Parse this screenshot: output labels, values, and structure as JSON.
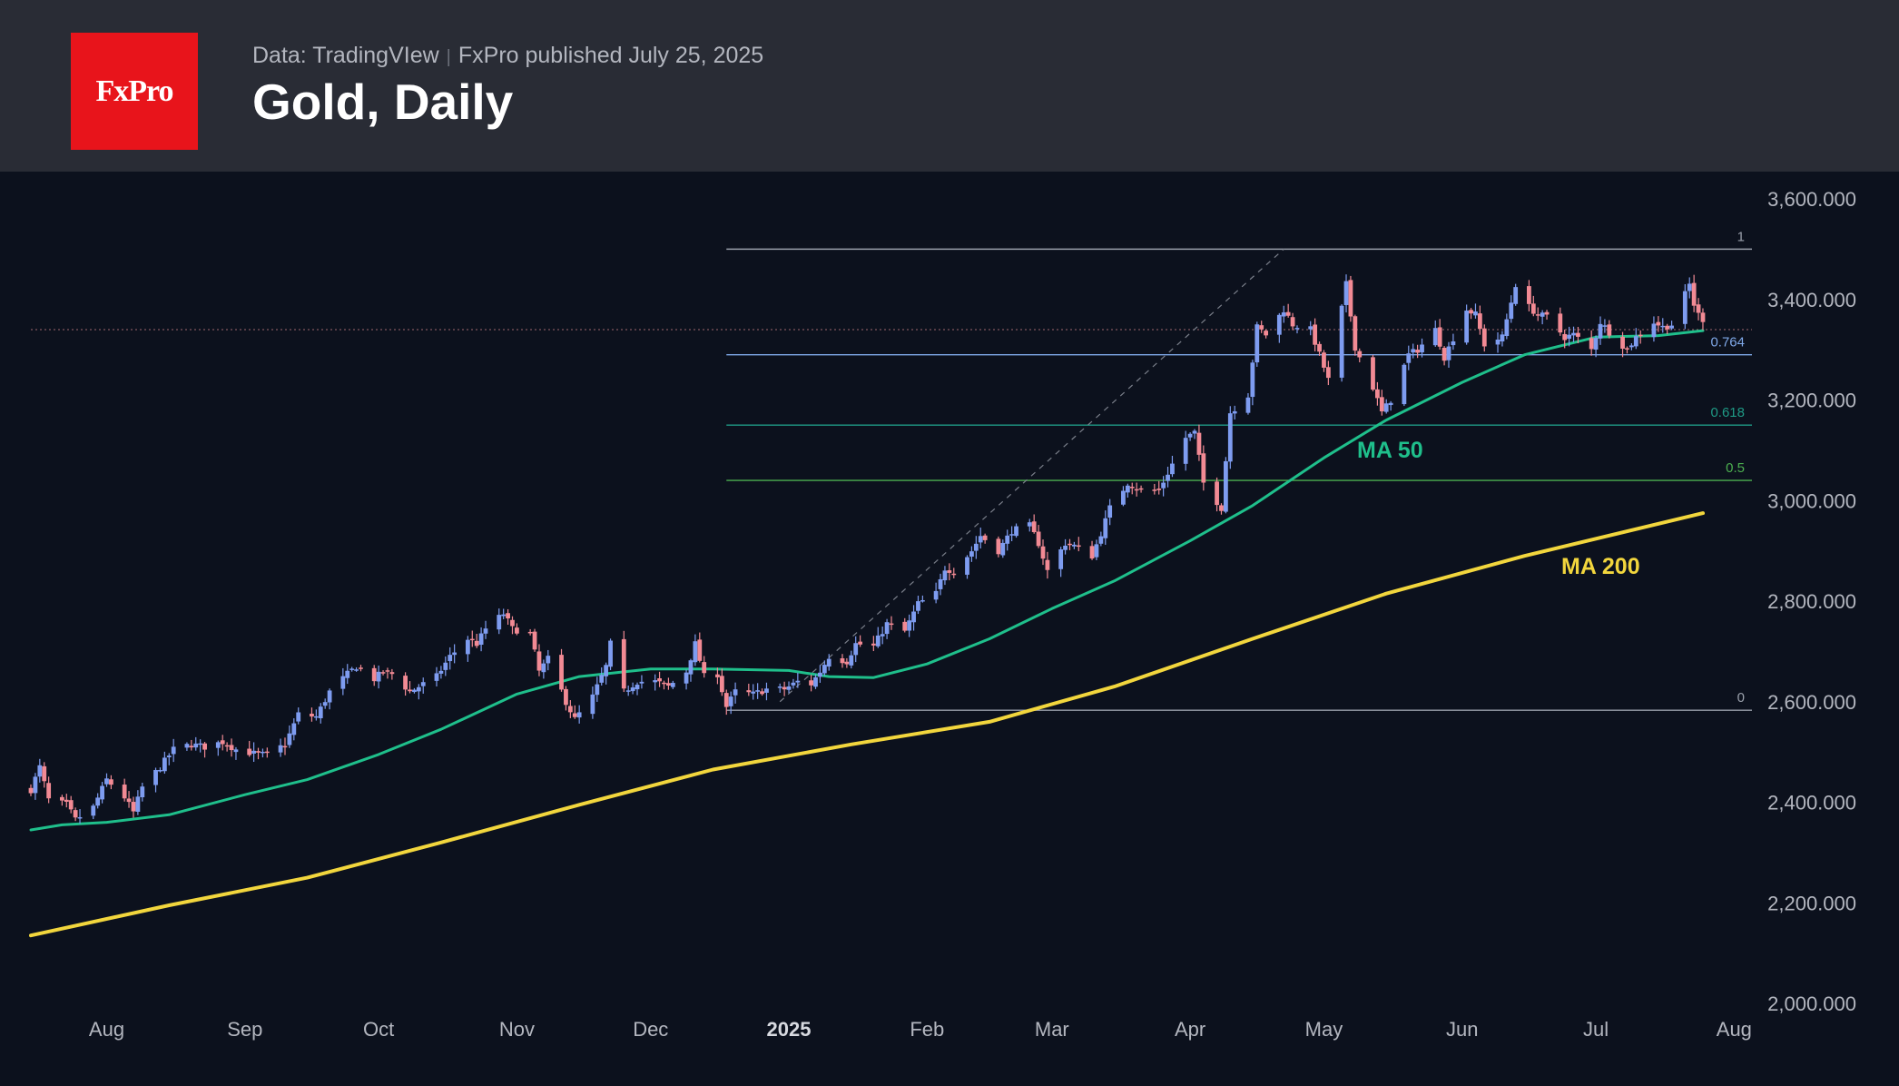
{
  "header": {
    "logo_text": "FxPro",
    "data_source": "Data: TradingVIew",
    "publisher": "FxPro published July 25, 2025",
    "title": "Gold, Daily"
  },
  "colors": {
    "background": "#0c111d",
    "header": "#292c35",
    "logo": "#e8141b",
    "up_candle": "#7e9cf0",
    "down_candle": "#f28a94",
    "ma50": "#1fbf8b",
    "ma200": "#f2d63d",
    "fib_1": "#9aa0ab",
    "fib_0764": "#7fa8e8",
    "fib_0618": "#1f9a85",
    "fib_05": "#4caf50",
    "fib_0": "#9aa0ab"
  },
  "chart_data": {
    "type": "candlestick",
    "title": "Gold, Daily",
    "x_range": [
      "2024-07-15",
      "2025-08-05"
    ],
    "ylim": [
      2000,
      3600
    ],
    "y_ticks": [
      "2,000.000",
      "2,200.000",
      "2,400.000",
      "2,600.000",
      "2,800.000",
      "3,000.000",
      "3,200.000",
      "3,400.000",
      "3,600.000"
    ],
    "x_ticks": [
      {
        "date": "2024-08-01",
        "label": "Aug"
      },
      {
        "date": "2024-09-01",
        "label": "Sep"
      },
      {
        "date": "2024-10-01",
        "label": "Oct"
      },
      {
        "date": "2024-11-01",
        "label": "Nov"
      },
      {
        "date": "2024-12-01",
        "label": "Dec"
      },
      {
        "date": "2025-01-01",
        "label": "2025",
        "bold": true
      },
      {
        "date": "2025-02-01",
        "label": "Feb"
      },
      {
        "date": "2025-03-01",
        "label": "Mar"
      },
      {
        "date": "2025-04-01",
        "label": "Apr"
      },
      {
        "date": "2025-05-01",
        "label": "May"
      },
      {
        "date": "2025-06-01",
        "label": "Jun"
      },
      {
        "date": "2025-07-01",
        "label": "Jul"
      },
      {
        "date": "2025-08-01",
        "label": "Aug"
      }
    ],
    "close_points": [
      [
        "2024-07-15",
        2425
      ],
      [
        "2024-07-17",
        2470
      ],
      [
        "2024-07-19",
        2405
      ],
      [
        "2024-07-23",
        2395
      ],
      [
        "2024-07-25",
        2365
      ],
      [
        "2024-07-29",
        2390
      ],
      [
        "2024-08-01",
        2445
      ],
      [
        "2024-08-05",
        2410
      ],
      [
        "2024-08-07",
        2380
      ],
      [
        "2024-08-09",
        2430
      ],
      [
        "2024-08-13",
        2470
      ],
      [
        "2024-08-16",
        2505
      ],
      [
        "2024-08-20",
        2515
      ],
      [
        "2024-08-23",
        2510
      ],
      [
        "2024-08-27",
        2520
      ],
      [
        "2024-08-30",
        2505
      ],
      [
        "2024-09-04",
        2495
      ],
      [
        "2024-09-06",
        2495
      ],
      [
        "2024-09-10",
        2515
      ],
      [
        "2024-09-13",
        2575
      ],
      [
        "2024-09-17",
        2570
      ],
      [
        "2024-09-20",
        2620
      ],
      [
        "2024-09-24",
        2655
      ],
      [
        "2024-09-26",
        2670
      ],
      [
        "2024-09-30",
        2645
      ],
      [
        "2024-10-02",
        2660
      ],
      [
        "2024-10-04",
        2655
      ],
      [
        "2024-10-08",
        2620
      ],
      [
        "2024-10-10",
        2630
      ],
      [
        "2024-10-14",
        2650
      ],
      [
        "2024-10-17",
        2690
      ],
      [
        "2024-10-21",
        2725
      ],
      [
        "2024-10-23",
        2715
      ],
      [
        "2024-10-25",
        2745
      ],
      [
        "2024-10-29",
        2775
      ],
      [
        "2024-10-31",
        2745
      ],
      [
        "2024-11-04",
        2735
      ],
      [
        "2024-11-06",
        2660
      ],
      [
        "2024-11-08",
        2685
      ],
      [
        "2024-11-12",
        2600
      ],
      [
        "2024-11-14",
        2565
      ],
      [
        "2024-11-18",
        2610
      ],
      [
        "2024-11-21",
        2670
      ],
      [
        "2024-11-22",
        2715
      ],
      [
        "2024-11-25",
        2620
      ],
      [
        "2024-11-28",
        2640
      ],
      [
        "2024-12-02",
        2640
      ],
      [
        "2024-12-05",
        2630
      ],
      [
        "2024-12-09",
        2660
      ],
      [
        "2024-12-11",
        2715
      ],
      [
        "2024-12-13",
        2650
      ],
      [
        "2024-12-16",
        2655
      ],
      [
        "2024-12-18",
        2590
      ],
      [
        "2024-12-20",
        2620
      ],
      [
        "2024-12-24",
        2615
      ],
      [
        "2024-12-27",
        2625
      ],
      [
        "2024-12-31",
        2625
      ],
      [
        "2025-01-03",
        2640
      ],
      [
        "2025-01-06",
        2635
      ],
      [
        "2025-01-08",
        2660
      ],
      [
        "2025-01-10",
        2690
      ],
      [
        "2025-01-14",
        2680
      ],
      [
        "2025-01-16",
        2715
      ],
      [
        "2025-01-20",
        2710
      ],
      [
        "2025-01-23",
        2755
      ],
      [
        "2025-01-27",
        2740
      ],
      [
        "2025-01-30",
        2795
      ],
      [
        "2025-02-03",
        2815
      ],
      [
        "2025-02-05",
        2865
      ],
      [
        "2025-02-07",
        2860
      ],
      [
        "2025-02-11",
        2900
      ],
      [
        "2025-02-13",
        2930
      ],
      [
        "2025-02-17",
        2900
      ],
      [
        "2025-02-20",
        2940
      ],
      [
        "2025-02-24",
        2950
      ],
      [
        "2025-02-26",
        2915
      ],
      [
        "2025-02-28",
        2860
      ],
      [
        "2025-03-04",
        2915
      ],
      [
        "2025-03-06",
        2910
      ],
      [
        "2025-03-10",
        2890
      ],
      [
        "2025-03-12",
        2935
      ],
      [
        "2025-03-14",
        2985
      ],
      [
        "2025-03-18",
        3035
      ],
      [
        "2025-03-21",
        3020
      ],
      [
        "2025-03-25",
        3020
      ],
      [
        "2025-03-27",
        3055
      ],
      [
        "2025-03-31",
        3125
      ],
      [
        "2025-04-02",
        3135
      ],
      [
        "2025-04-04",
        3035
      ],
      [
        "2025-04-08",
        2985
      ],
      [
        "2025-04-10",
        3175
      ],
      [
        "2025-04-14",
        3210
      ],
      [
        "2025-04-16",
        3345
      ],
      [
        "2025-04-18",
        3330
      ],
      [
        "2025-04-22",
        3380
      ],
      [
        "2025-04-24",
        3350
      ],
      [
        "2025-04-28",
        3340
      ],
      [
        "2025-04-30",
        3290
      ],
      [
        "2025-05-02",
        3240
      ],
      [
        "2025-05-06",
        3430
      ],
      [
        "2025-05-08",
        3305
      ],
      [
        "2025-05-12",
        3225
      ],
      [
        "2025-05-14",
        3175
      ],
      [
        "2025-05-16",
        3200
      ],
      [
        "2025-05-20",
        3290
      ],
      [
        "2025-05-22",
        3300
      ],
      [
        "2025-05-26",
        3340
      ],
      [
        "2025-05-28",
        3285
      ],
      [
        "2025-06-02",
        3380
      ],
      [
        "2025-06-04",
        3370
      ],
      [
        "2025-06-06",
        3310
      ],
      [
        "2025-06-10",
        3325
      ],
      [
        "2025-06-13",
        3430
      ],
      [
        "2025-06-16",
        3385
      ],
      [
        "2025-06-18",
        3370
      ],
      [
        "2025-06-20",
        3365
      ],
      [
        "2025-06-24",
        3325
      ],
      [
        "2025-06-26",
        3330
      ],
      [
        "2025-06-30",
        3300
      ],
      [
        "2025-07-02",
        3355
      ],
      [
        "2025-07-04",
        3335
      ],
      [
        "2025-07-08",
        3300
      ],
      [
        "2025-07-10",
        3325
      ],
      [
        "2025-07-14",
        3355
      ],
      [
        "2025-07-16",
        3345
      ],
      [
        "2025-07-18",
        3350
      ],
      [
        "2025-07-22",
        3430
      ],
      [
        "2025-07-23",
        3390
      ],
      [
        "2025-07-24",
        3370
      ],
      [
        "2025-07-25",
        3355
      ]
    ],
    "ma50_points": [
      [
        "2024-07-15",
        2345
      ],
      [
        "2024-07-22",
        2355
      ],
      [
        "2024-08-01",
        2360
      ],
      [
        "2024-08-15",
        2375
      ],
      [
        "2024-09-01",
        2415
      ],
      [
        "2024-09-15",
        2445
      ],
      [
        "2024-10-01",
        2495
      ],
      [
        "2024-10-15",
        2545
      ],
      [
        "2024-11-01",
        2615
      ],
      [
        "2024-11-15",
        2650
      ],
      [
        "2024-12-01",
        2665
      ],
      [
        "2024-12-15",
        2665
      ],
      [
        "2025-01-01",
        2662
      ],
      [
        "2025-01-10",
        2650
      ],
      [
        "2025-01-20",
        2648
      ],
      [
        "2025-02-01",
        2675
      ],
      [
        "2025-02-15",
        2725
      ],
      [
        "2025-03-01",
        2785
      ],
      [
        "2025-03-15",
        2840
      ],
      [
        "2025-04-01",
        2920
      ],
      [
        "2025-04-15",
        2990
      ],
      [
        "2025-05-01",
        3085
      ],
      [
        "2025-05-15",
        3160
      ],
      [
        "2025-06-01",
        3235
      ],
      [
        "2025-06-15",
        3290
      ],
      [
        "2025-07-01",
        3325
      ],
      [
        "2025-07-15",
        3328
      ],
      [
        "2025-07-25",
        3338
      ]
    ],
    "ma200_points": [
      [
        "2024-07-15",
        2135
      ],
      [
        "2024-08-15",
        2195
      ],
      [
        "2024-09-15",
        2250
      ],
      [
        "2024-10-15",
        2320
      ],
      [
        "2024-11-15",
        2395
      ],
      [
        "2024-12-15",
        2465
      ],
      [
        "2025-01-15",
        2515
      ],
      [
        "2025-02-15",
        2560
      ],
      [
        "2025-03-15",
        2630
      ],
      [
        "2025-04-15",
        2725
      ],
      [
        "2025-05-15",
        2815
      ],
      [
        "2025-06-15",
        2890
      ],
      [
        "2025-07-25",
        2975
      ]
    ],
    "annotations": {
      "ma50_label": "MA 50",
      "ma200_label": "MA 200",
      "fib_levels": [
        {
          "label": "1",
          "value": 3500
        },
        {
          "label": "0.764",
          "value": 3290
        },
        {
          "label": "0.618",
          "value": 3150
        },
        {
          "label": "0.5",
          "value": 3040
        },
        {
          "label": "0",
          "value": 2583
        }
      ],
      "fib_start_date": "2024-12-18",
      "trend_line": [
        [
          "2024-12-30",
          2600
        ],
        [
          "2025-04-22",
          3500
        ]
      ],
      "last_price_line": 3340
    }
  }
}
